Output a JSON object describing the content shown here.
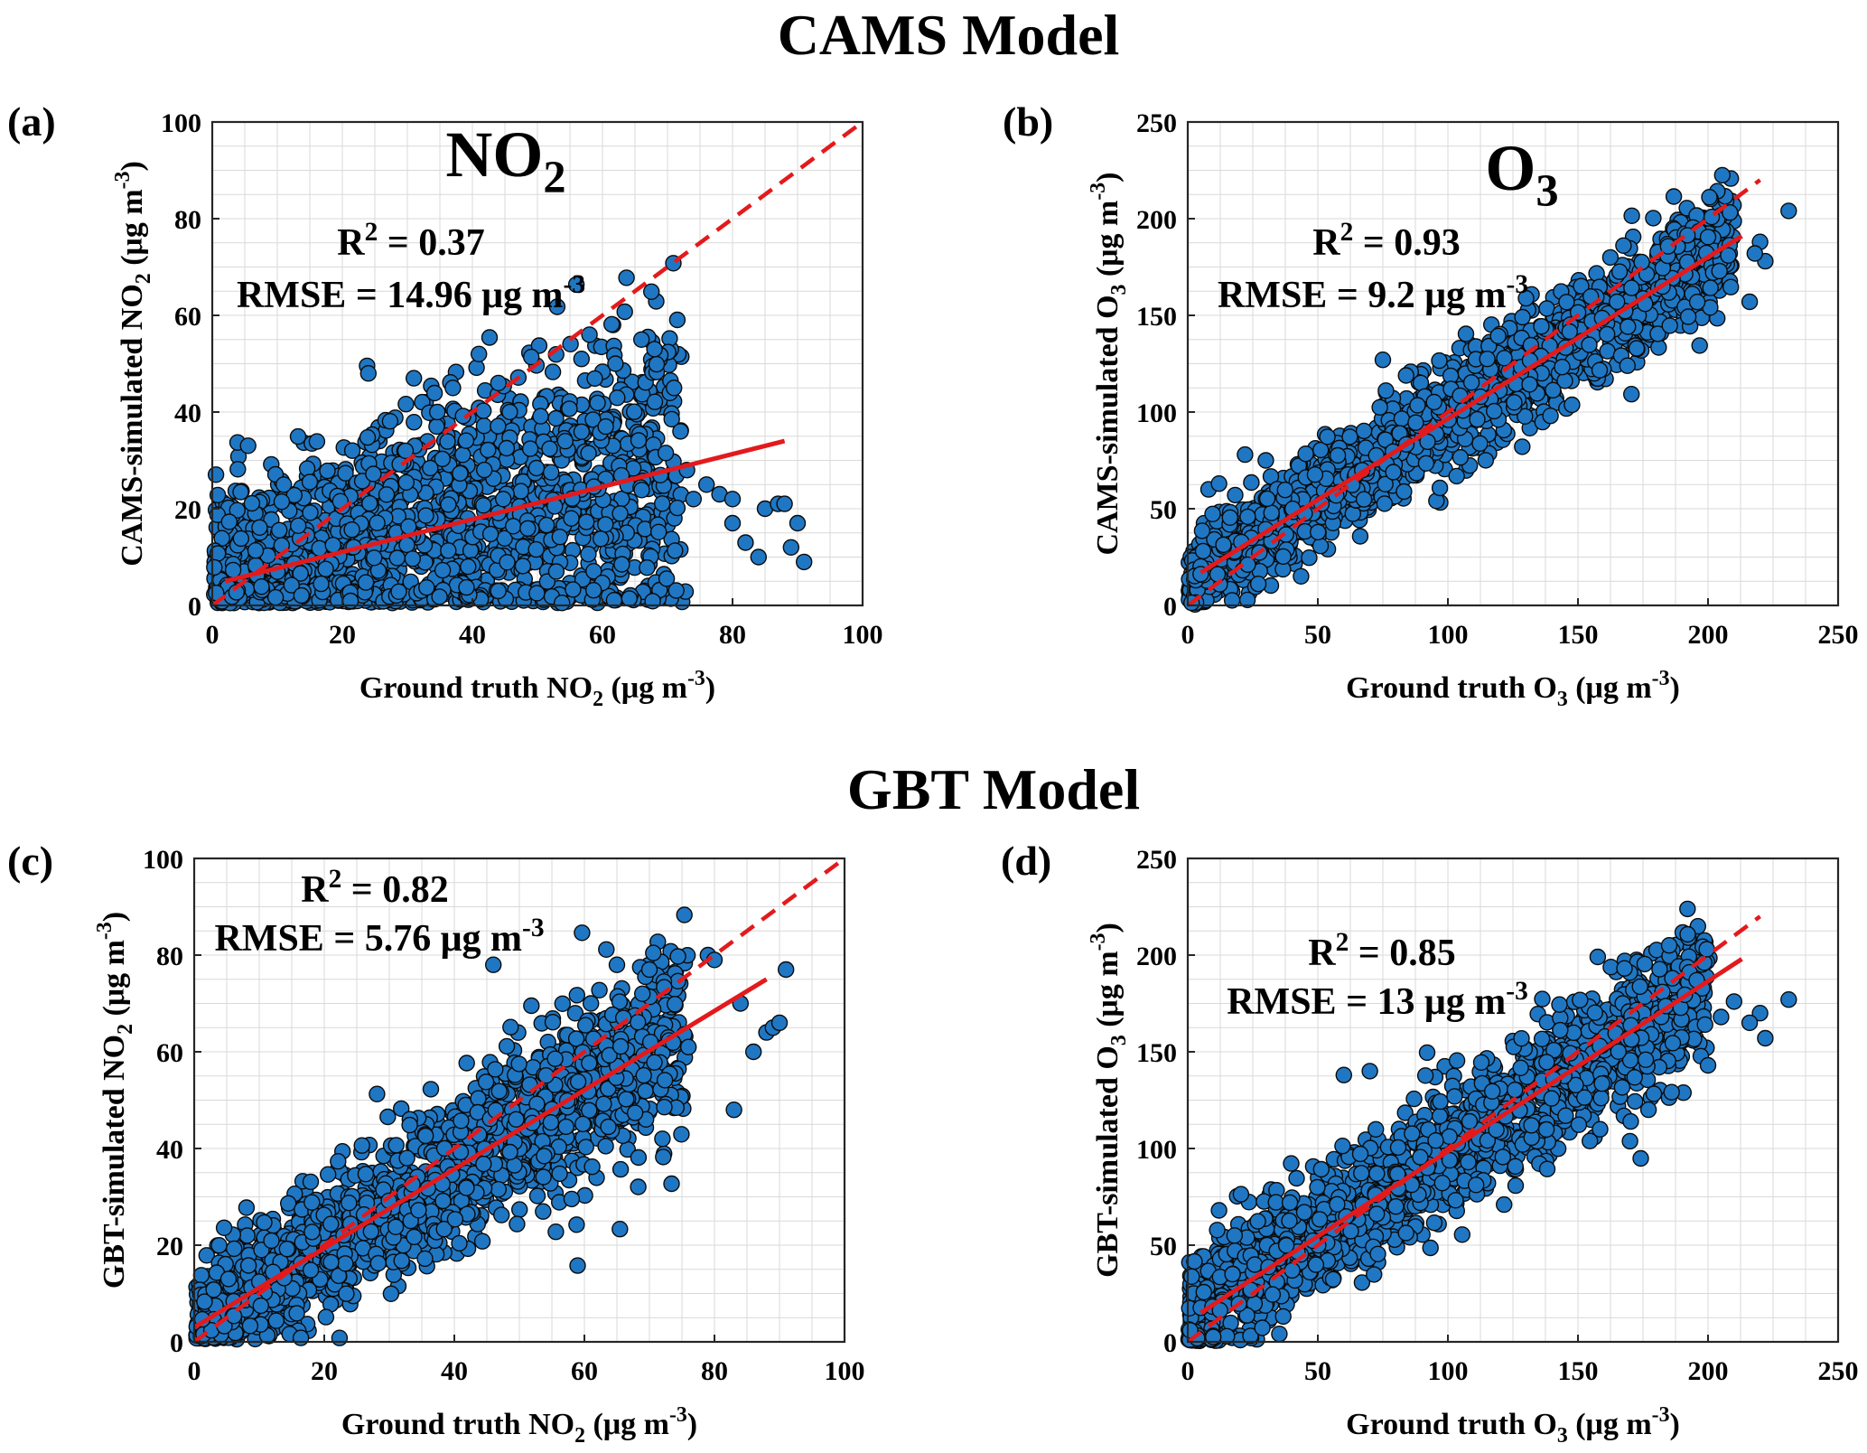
{
  "figure": {
    "sections": [
      {
        "title": "CAMS Model"
      },
      {
        "title": "GBT Model"
      }
    ],
    "colors": {
      "marker_fill": "#1f77c4",
      "marker_edge": "#0b0b0b",
      "fit_line": "#e31a1c",
      "identity_line": "#e31a1c",
      "grid": "#d9d9d9",
      "axes": "#262626"
    }
  },
  "chart_data": [
    {
      "id": "a",
      "type": "scatter",
      "panel_label": "(a)",
      "title_main": "NO",
      "title_sub": "2",
      "xlabel": {
        "pre": "Ground truth NO",
        "sub": "2",
        "post": " (μg m",
        "sup": "-3",
        "end": ")"
      },
      "ylabel": {
        "pre": "CAMS-simulated NO",
        "sub": "2",
        "post": " (μg m",
        "sup": "-3",
        "end": ")"
      },
      "r2": {
        "label": "R",
        "sup": "2",
        "value": " = 0.37"
      },
      "rmse": {
        "label": "RMSE = 14.96 μg m",
        "sup": "-3"
      },
      "xlim": [
        0,
        100
      ],
      "ylim": [
        0,
        100
      ],
      "xticks": [
        0,
        20,
        40,
        60,
        80,
        100
      ],
      "yticks": [
        0,
        20,
        40,
        60,
        80,
        100
      ],
      "fit_line": {
        "x0": 2,
        "y0": 5,
        "x1": 88,
        "y1": 34
      },
      "identity_line": {
        "x0": 0,
        "y0": 0,
        "x1": 100,
        "y1": 100
      },
      "scatter_model": {
        "n": 1700,
        "xmax": 72,
        "slope": 0.34,
        "intercept": 4,
        "spread": 9,
        "spread_growth": 0.12,
        "seed": 11
      },
      "outliers": [
        [
          66,
          55
        ],
        [
          68,
          53
        ],
        [
          71,
          45
        ],
        [
          72,
          36
        ],
        [
          73,
          28
        ],
        [
          74,
          22
        ],
        [
          76,
          25
        ],
        [
          78,
          23
        ],
        [
          80,
          17
        ],
        [
          80,
          22
        ],
        [
          82,
          13
        ],
        [
          84,
          10
        ],
        [
          85,
          20
        ],
        [
          87,
          21
        ],
        [
          88,
          21
        ],
        [
          89,
          12
        ],
        [
          90,
          17
        ],
        [
          91,
          9
        ],
        [
          41,
          52
        ],
        [
          31,
          47
        ],
        [
          24,
          48
        ],
        [
          11,
          25
        ],
        [
          58,
          56
        ],
        [
          62,
          50
        ],
        [
          44,
          46
        ],
        [
          37,
          45
        ]
      ]
    },
    {
      "id": "b",
      "type": "scatter",
      "panel_label": "(b)",
      "title_main": "O",
      "title_sub": "3",
      "xlabel": {
        "pre": "Ground truth O",
        "sub": "3",
        "post": " (μg m",
        "sup": "-3",
        "end": ")"
      },
      "ylabel": {
        "pre": "CAMS-simulated O",
        "sub": "3",
        "post": " (μg m",
        "sup": "-3",
        "end": ")"
      },
      "r2": {
        "label": "R",
        "sup": "2",
        "value": " = 0.93"
      },
      "rmse": {
        "label": "RMSE = 9.2 μg m",
        "sup": "-3"
      },
      "xlim": [
        0,
        250
      ],
      "ylim": [
        0,
        250
      ],
      "xticks": [
        0,
        50,
        100,
        150,
        200,
        250
      ],
      "yticks": [
        0,
        50,
        100,
        150,
        200,
        250
      ],
      "fit_line": {
        "x0": 5,
        "y0": 17,
        "x1": 213,
        "y1": 191
      },
      "identity_line": {
        "x0": 0,
        "y0": 0,
        "x1": 220,
        "y1": 220
      },
      "scatter_model": {
        "n": 1800,
        "xmax": 210,
        "slope": 0.84,
        "intercept": 13,
        "spread": 11,
        "spread_growth": 0.02,
        "seed": 23
      },
      "outliers": [
        [
          231,
          204
        ],
        [
          222,
          178
        ],
        [
          220,
          188
        ],
        [
          216,
          157
        ],
        [
          218,
          182
        ],
        [
          8,
          60
        ],
        [
          12,
          63
        ],
        [
          22,
          78
        ],
        [
          30,
          75
        ],
        [
          75,
          127
        ],
        [
          165,
          157
        ]
      ]
    },
    {
      "id": "c",
      "type": "scatter",
      "panel_label": "(c)",
      "title_main": "",
      "title_sub": "",
      "xlabel": {
        "pre": "Ground truth NO",
        "sub": "2",
        "post": " (μg m",
        "sup": "-3",
        "end": ")"
      },
      "ylabel": {
        "pre": "GBT-simulated NO",
        "sub": "2",
        "post": " (μg m",
        "sup": "-3",
        "end": ")"
      },
      "r2": {
        "label": "R",
        "sup": "2",
        "value": " = 0.82"
      },
      "rmse": {
        "label": "RMSE = 5.76 μg m",
        "sup": "-3"
      },
      "xlim": [
        0,
        100
      ],
      "ylim": [
        0,
        100
      ],
      "xticks": [
        0,
        20,
        40,
        60,
        80,
        100
      ],
      "yticks": [
        0,
        20,
        40,
        60,
        80,
        100
      ],
      "fit_line": {
        "x0": 0,
        "y0": 3,
        "x1": 88,
        "y1": 75
      },
      "identity_line": {
        "x0": 0,
        "y0": 0,
        "x1": 100,
        "y1": 100
      },
      "scatter_model": {
        "n": 1700,
        "xmax": 75,
        "slope": 0.82,
        "intercept": 3,
        "spread": 6,
        "spread_growth": 0.06,
        "seed": 37
      },
      "outliers": [
        [
          79,
          80
        ],
        [
          80,
          79
        ],
        [
          84,
          70
        ],
        [
          83,
          48
        ],
        [
          86,
          60
        ],
        [
          88,
          64
        ],
        [
          89,
          65
        ],
        [
          90,
          66
        ],
        [
          91,
          77
        ],
        [
          76,
          61
        ],
        [
          70,
          77
        ],
        [
          65,
          78
        ],
        [
          46,
          78
        ],
        [
          61,
          70
        ],
        [
          66,
          67
        ],
        [
          72,
          42
        ]
      ]
    },
    {
      "id": "d",
      "type": "scatter",
      "panel_label": "(d)",
      "title_main": "",
      "title_sub": "",
      "xlabel": {
        "pre": "Ground truth O",
        "sub": "3",
        "post": " (μg m",
        "sup": "-3",
        "end": ")"
      },
      "ylabel": {
        "pre": "GBT-simulated O",
        "sub": "3",
        "post": " (μg m",
        "sup": "-3",
        "end": ")"
      },
      "r2": {
        "label": "R",
        "sup": "2",
        "value": " = 0.85"
      },
      "rmse": {
        "label": "RMSE = 13 μg m",
        "sup": "-3"
      },
      "xlim": [
        0,
        250
      ],
      "ylim": [
        0,
        250
      ],
      "xticks": [
        0,
        50,
        100,
        150,
        200,
        250
      ],
      "yticks": [
        0,
        50,
        100,
        150,
        200,
        250
      ],
      "fit_line": {
        "x0": 5,
        "y0": 15,
        "x1": 213,
        "y1": 198
      },
      "identity_line": {
        "x0": 0,
        "y0": 0,
        "x1": 220,
        "y1": 220
      },
      "scatter_model": {
        "n": 1800,
        "xmax": 200,
        "slope": 0.86,
        "intercept": 12,
        "spread": 15,
        "spread_growth": 0.02,
        "seed": 51
      },
      "outliers": [
        [
          231,
          177
        ],
        [
          222,
          157
        ],
        [
          220,
          170
        ],
        [
          216,
          165
        ],
        [
          210,
          176
        ],
        [
          205,
          168
        ],
        [
          200,
          143
        ],
        [
          12,
          68
        ],
        [
          18,
          55
        ],
        [
          60,
          138
        ],
        [
          70,
          140
        ]
      ]
    }
  ]
}
